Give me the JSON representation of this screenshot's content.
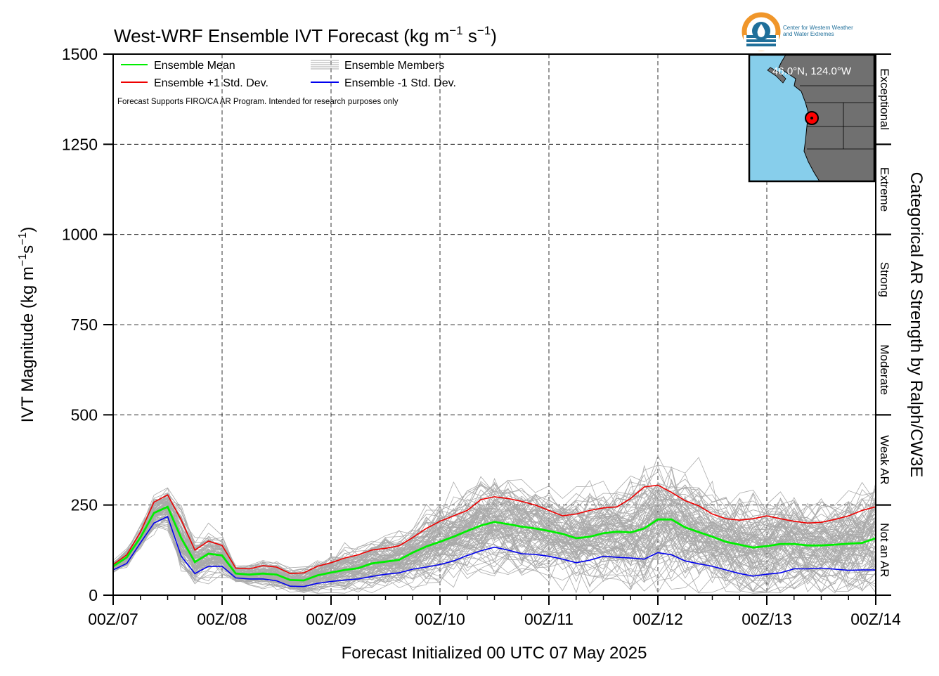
{
  "chart_data": {
    "type": "line",
    "title_main": "West-WRF Ensemble IVT Forecast (kg m",
    "title_exp1": "−1",
    "title_mid": " s",
    "title_exp2": "−1",
    "title_end": ")",
    "ylabel_main": "IVT Magnitude (kg m",
    "ylabel_exp1": "−1",
    "ylabel_mid": "s",
    "ylabel_exp2": "−1",
    "ylabel_end": ")",
    "xlabel": "Forecast Initialized 00 UTC 07 May 2025",
    "right_axis_label": "Categorical AR Strength by Ralph/CW3E",
    "note": "Forecast Supports FIRO/CA AR Program. Intended for research purposes only",
    "ylim": [
      0,
      1500
    ],
    "yticks": [
      0,
      250,
      500,
      750,
      1000,
      1250,
      1500
    ],
    "xlim_hours": [
      0,
      168
    ],
    "xticks": [
      {
        "label": "00Z/07",
        "hour": 0
      },
      {
        "label": "00Z/08",
        "hour": 24
      },
      {
        "label": "00Z/09",
        "hour": 48
      },
      {
        "label": "00Z/10",
        "hour": 72
      },
      {
        "label": "00Z/11",
        "hour": 96
      },
      {
        "label": "00Z/12",
        "hour": 120
      },
      {
        "label": "00Z/13",
        "hour": 144
      },
      {
        "label": "00Z/14",
        "hour": 168
      }
    ],
    "grid": true,
    "legend_position": "top-left",
    "categories_right": [
      {
        "label": "Not an AR",
        "from": 0,
        "to": 250
      },
      {
        "label": "Weak AR",
        "from": 250,
        "to": 500
      },
      {
        "label": "Moderate",
        "from": 500,
        "to": 750
      },
      {
        "label": "Strong",
        "from": 750,
        "to": 1000
      },
      {
        "label": "Extreme",
        "from": 1000,
        "to": 1250
      },
      {
        "label": "Exceptional",
        "from": 1250,
        "to": 1500
      }
    ],
    "series": [
      {
        "name": "Ensemble Mean",
        "color": "#00ee00",
        "x": [
          0,
          3,
          6,
          9,
          12,
          15,
          18,
          21,
          24,
          27,
          30,
          33,
          36,
          39,
          42,
          45,
          48,
          51,
          54,
          57,
          60,
          63,
          66,
          69,
          72,
          75,
          78,
          81,
          84,
          87,
          90,
          93,
          96,
          99,
          102,
          105,
          108,
          111,
          114,
          117,
          120,
          123,
          126,
          129,
          132,
          135,
          138,
          141,
          144,
          147,
          150,
          153,
          156,
          159,
          162,
          165,
          168
        ],
        "y": [
          80,
          105,
          160,
          228,
          245,
          158,
          92,
          115,
          110,
          60,
          57,
          60,
          57,
          42,
          41,
          55,
          63,
          70,
          75,
          88,
          93,
          98,
          118,
          135,
          148,
          162,
          178,
          193,
          203,
          197,
          190,
          185,
          178,
          170,
          158,
          162,
          172,
          176,
          174,
          185,
          210,
          210,
          188,
          175,
          162,
          148,
          140,
          132,
          136,
          142,
          142,
          138,
          138,
          140,
          143,
          145,
          158
        ]
      },
      {
        "name": "Ensemble +1 Std. Dev.",
        "color": "#ee0000",
        "x": [
          0,
          3,
          6,
          9,
          12,
          15,
          18,
          21,
          24,
          27,
          30,
          33,
          36,
          39,
          42,
          45,
          48,
          51,
          54,
          57,
          60,
          63,
          66,
          69,
          72,
          75,
          78,
          81,
          84,
          87,
          90,
          93,
          96,
          99,
          102,
          105,
          108,
          111,
          114,
          117,
          120,
          123,
          126,
          129,
          132,
          135,
          138,
          141,
          144,
          147,
          150,
          153,
          156,
          159,
          162,
          165,
          168
        ],
        "y": [
          85,
          112,
          175,
          258,
          278,
          208,
          125,
          150,
          138,
          75,
          73,
          82,
          78,
          60,
          62,
          80,
          90,
          103,
          112,
          125,
          130,
          137,
          160,
          185,
          205,
          220,
          235,
          265,
          273,
          268,
          260,
          250,
          235,
          220,
          225,
          235,
          242,
          245,
          268,
          300,
          305,
          285,
          262,
          248,
          225,
          212,
          208,
          212,
          220,
          212,
          205,
          200,
          202,
          210,
          220,
          235,
          245
        ]
      },
      {
        "name": "Ensemble -1 Std. Dev.",
        "color": "#0000ee",
        "x": [
          0,
          3,
          6,
          9,
          12,
          15,
          18,
          21,
          24,
          27,
          30,
          33,
          36,
          39,
          42,
          45,
          48,
          51,
          54,
          57,
          60,
          63,
          66,
          69,
          72,
          75,
          78,
          81,
          84,
          87,
          90,
          93,
          96,
          99,
          102,
          105,
          108,
          111,
          114,
          117,
          120,
          123,
          126,
          129,
          132,
          135,
          138,
          141,
          144,
          147,
          150,
          153,
          156,
          159,
          162,
          165,
          168
        ],
        "y": [
          70,
          88,
          145,
          200,
          218,
          108,
          60,
          80,
          80,
          48,
          45,
          45,
          40,
          25,
          24,
          33,
          38,
          42,
          45,
          52,
          58,
          62,
          72,
          78,
          85,
          95,
          110,
          123,
          133,
          125,
          115,
          113,
          108,
          100,
          90,
          97,
          108,
          105,
          103,
          100,
          118,
          112,
          95,
          87,
          80,
          70,
          60,
          53,
          58,
          62,
          73,
          73,
          75,
          72,
          69,
          70,
          70
        ]
      }
    ],
    "members_label": "Ensemble Members",
    "members_color": "#aaaaaa",
    "inset_map": {
      "label_lat": "46.0",
      "label_lon": "124.0",
      "label_text_a": "46.0°N, 124.0°W",
      "ocean_color": "#87ceeb",
      "land_color": "#707070",
      "marker_color": "#ff0000"
    }
  },
  "logo": {
    "line1": "Center for Western Weather",
    "line2": "and Water Extremes",
    "color_orange": "#f0962a",
    "color_blue": "#1f6f9a"
  }
}
